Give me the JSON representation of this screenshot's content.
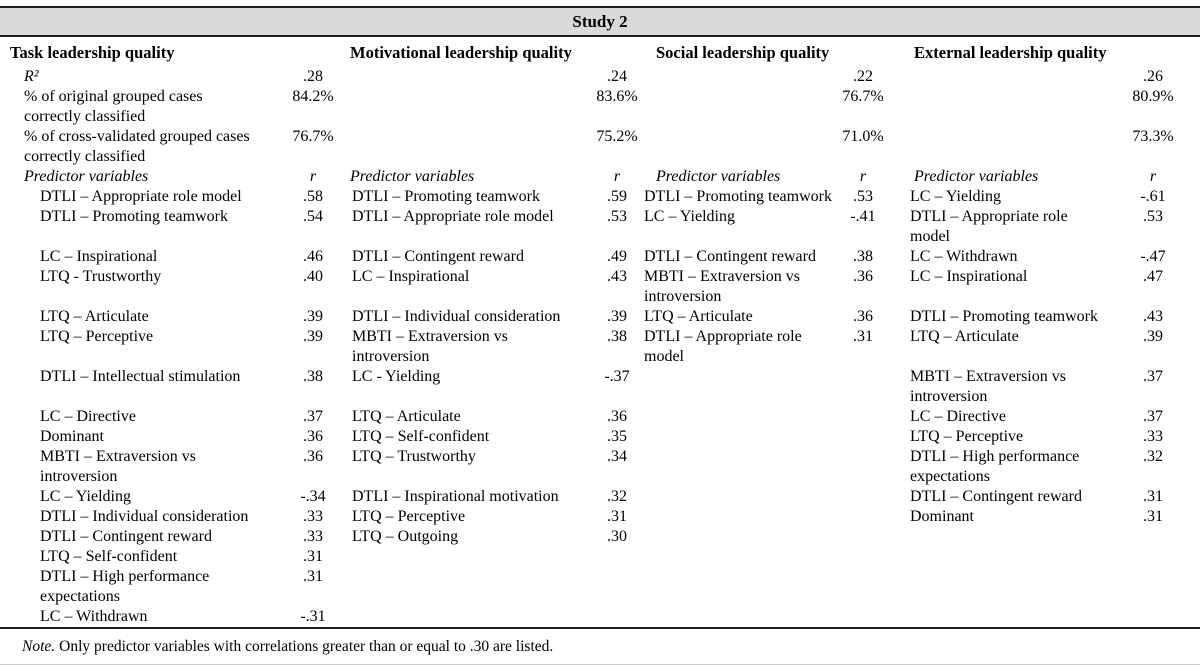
{
  "table": {
    "title": "Study 2",
    "groups": [
      {
        "header": "Task leadership quality"
      },
      {
        "header": "Motivational leadership quality"
      },
      {
        "header": "Social leadership quality"
      },
      {
        "header": "External leadership quality"
      }
    ],
    "stats": [
      {
        "label": "R²",
        "italic": true,
        "values": [
          ".28",
          ".24",
          ".22",
          ".26"
        ]
      },
      {
        "label": "% of original grouped cases\ncorrectly classified",
        "italic": false,
        "values": [
          "84.2%",
          "83.6%",
          "76.7%",
          "80.9%"
        ]
      },
      {
        "label": "% of cross-validated grouped cases\ncorrectly classified",
        "italic": false,
        "values": [
          "76.7%",
          "75.2%",
          "71.0%",
          "73.3%"
        ]
      }
    ],
    "predictor_header": {
      "label": "Predictor variables",
      "r_label": "r"
    },
    "predictor_rows": [
      [
        {
          "label": "DTLI – Appropriate role model",
          "r": ".58"
        },
        {
          "label": "DTLI – Promoting teamwork",
          "r": ".59"
        },
        {
          "label": "DTLI – Promoting teamwork",
          "r": ".53"
        },
        {
          "label": "LC – Yielding",
          "r": "-.61"
        }
      ],
      [
        {
          "label": "DTLI – Promoting teamwork",
          "r": ".54"
        },
        {
          "label": "DTLI – Appropriate role model",
          "r": ".53"
        },
        {
          "label": "LC – Yielding",
          "r": "-.41"
        },
        {
          "label": "DTLI – Appropriate role\nmodel",
          "r": ".53"
        }
      ],
      [
        {
          "label": "LC – Inspirational",
          "r": ".46"
        },
        {
          "label": "DTLI – Contingent reward",
          "r": ".49"
        },
        {
          "label": "DTLI – Contingent reward",
          "r": ".38"
        },
        {
          "label": "LC – Withdrawn",
          "r": "-.47"
        }
      ],
      [
        {
          "label": "LTQ - Trustworthy",
          "r": ".40"
        },
        {
          "label": "LC – Inspirational",
          "r": ".43"
        },
        {
          "label": "MBTI – Extraversion vs\nintroversion",
          "r": ".36"
        },
        {
          "label": "LC – Inspirational",
          "r": ".47"
        }
      ],
      [
        {
          "label": "LTQ – Articulate",
          "r": ".39"
        },
        {
          "label": "DTLI – Individual consideration",
          "r": ".39"
        },
        {
          "label": "LTQ – Articulate",
          "r": ".36"
        },
        {
          "label": "DTLI – Promoting teamwork",
          "r": ".43"
        }
      ],
      [
        {
          "label": "LTQ – Perceptive",
          "r": ".39"
        },
        {
          "label": "MBTI – Extraversion vs\nintroversion",
          "r": ".38"
        },
        {
          "label": "DTLI – Appropriate role\nmodel",
          "r": ".31"
        },
        {
          "label": "LTQ – Articulate",
          "r": ".39"
        }
      ],
      [
        {
          "label": "DTLI – Intellectual stimulation",
          "r": ".38"
        },
        {
          "label": "LC - Yielding",
          "r": "-.37"
        },
        null,
        {
          "label": "MBTI – Extraversion vs\nintroversion",
          "r": ".37"
        }
      ],
      [
        {
          "label": "LC – Directive",
          "r": ".37"
        },
        {
          "label": "LTQ – Articulate",
          "r": ".36"
        },
        null,
        {
          "label": "LC – Directive",
          "r": ".37"
        }
      ],
      [
        {
          "label": "Dominant",
          "r": ".36"
        },
        {
          "label": "LTQ – Self-confident",
          "r": ".35"
        },
        null,
        {
          "label": "LTQ – Perceptive",
          "r": ".33"
        }
      ],
      [
        {
          "label": "MBTI – Extraversion vs\nintroversion",
          "r": ".36"
        },
        {
          "label": "LTQ – Trustworthy",
          "r": ".34"
        },
        null,
        {
          "label": "DTLI – High performance\nexpectations",
          "r": ".32"
        }
      ],
      [
        {
          "label": "LC – Yielding",
          "r": "-.34"
        },
        {
          "label": "DTLI – Inspirational motivation",
          "r": ".32"
        },
        null,
        {
          "label": "DTLI – Contingent reward",
          "r": ".31"
        }
      ],
      [
        {
          "label": "DTLI – Individual consideration",
          "r": ".33"
        },
        {
          "label": "LTQ – Perceptive",
          "r": ".31"
        },
        null,
        {
          "label": "Dominant",
          "r": ".31"
        }
      ],
      [
        {
          "label": "DTLI – Contingent reward",
          "r": ".33"
        },
        {
          "label": "LTQ – Outgoing",
          "r": ".30"
        },
        null,
        null
      ],
      [
        {
          "label": "LTQ – Self-confident",
          "r": ".31"
        },
        null,
        null,
        null
      ],
      [
        {
          "label": "DTLI – High performance\nexpectations",
          "r": ".31"
        },
        null,
        null,
        null
      ],
      [
        {
          "label": "LC – Withdrawn",
          "r": "-.31"
        },
        null,
        null,
        null
      ]
    ],
    "note": {
      "prefix": "Note.",
      "text": "Only predictor variables with correlations greater than or equal to .30 are listed."
    }
  }
}
